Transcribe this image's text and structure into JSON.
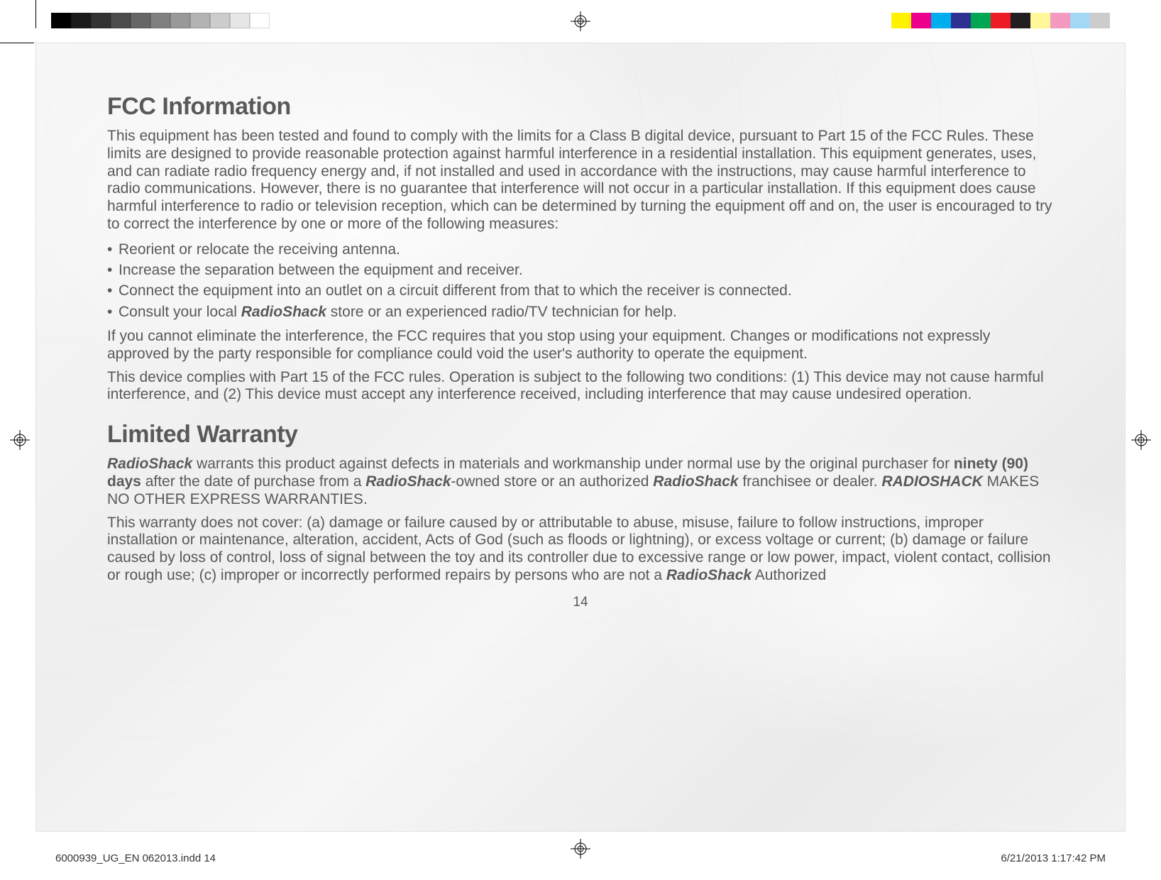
{
  "colorbars": {
    "left_colors": [
      "#000000",
      "#1a1a1a",
      "#333333",
      "#4d4d4d",
      "#666666",
      "#808080",
      "#999999",
      "#b3b3b3",
      "#cccccc",
      "#e6e6e6",
      "#ffffff"
    ],
    "right_colors": [
      "#fff200",
      "#ec008c",
      "#00aeef",
      "#2e3192",
      "#00a651",
      "#ed1c24",
      "#231f20",
      "#fff799",
      "#f49ac1",
      "#a3d8f4",
      "#cccccc"
    ],
    "swatch_width": 28
  },
  "heading1": "FCC Information",
  "para1": "This equipment has been tested and found to comply with the limits for a Class B digital device, pursuant to Part 15 of the FCC Rules. These limits are designed to provide reasonable protection against harmful interference in a residential installation. This equipment generates, uses, and can radiate radio frequency energy and, if not installed and used in accordance with the instructions, may cause harmful interference to radio communications. However, there is no guarantee that interference will not occur in a particular installation. If this equipment does cause harmful interference to radio or television reception, which can be determined by turning the equipment off and on, the user is encouraged to try to correct the interference by one or more of the following measures:",
  "bullets": [
    "Reorient or relocate the receiving antenna.",
    "Increase the separation between the equipment and receiver.",
    "Connect the equipment into an outlet on a circuit different from that to which the receiver is connected."
  ],
  "bullet4_pre": "Consult your local ",
  "bullet4_brand": "RadioShack",
  "bullet4_post": " store or an experienced radio/TV technician for help.",
  "para2": "If you cannot eliminate the interference, the FCC requires that you stop using your equipment. Changes or modifications not expressly approved by the party responsible for compliance could void the user's authority to operate the equipment.",
  "para3": "This device complies with Part 15 of the FCC rules. Operation is subject to the following two conditions: (1) This device may not cause harmful interference, and (2) This device must accept any interference received, including interference that may cause undesired operation.",
  "heading2": "Limited Warranty",
  "lw": {
    "brand": "RadioShack",
    "p1a": " warrants this product against defects in materials and workmanship under normal use by the original purchaser for ",
    "ninety": "ninety (90) days",
    "p1b": " after the date of purchase from a ",
    "p1c": "-owned store or an authorized ",
    "p1d": " franchisee or dealer. ",
    "caps": "RADIOSHACK",
    "p1e": " MAKES NO OTHER EXPRESS WARRANTIES.",
    "p2a": "This warranty does not cover: (a) damage or failure caused by or attributable to abuse, misuse, failure to follow instructions, improper installation or maintenance, alteration, accident, Acts of God (such as floods or lightning), or excess voltage or current; (b) damage or failure caused by loss of control, loss of signal between the toy and its controller due to excessive range or low power, impact, violent contact, collision or rough use; (c) improper or incorrectly performed repairs by persons who are not a ",
    "p2b": " Authorized"
  },
  "page_number": "14",
  "footer_left": "6000939_UG_EN 062013.indd   14",
  "footer_right": "6/21/2013   1:17:42 PM"
}
